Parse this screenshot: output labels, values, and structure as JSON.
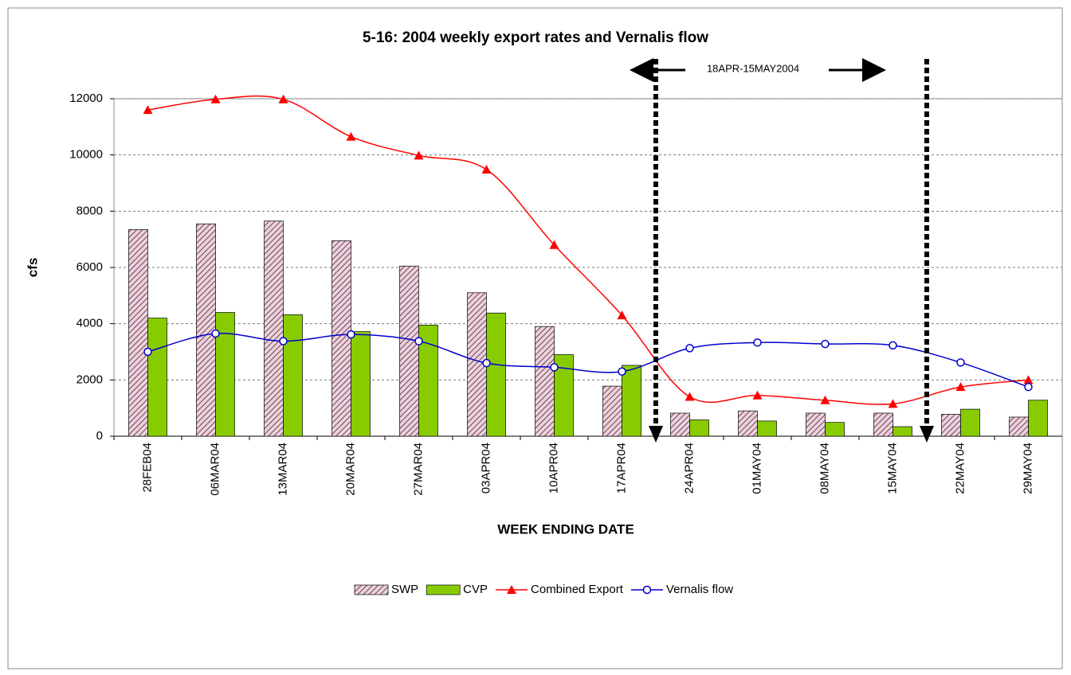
{
  "chart_data": {
    "type": "combo",
    "title": "5-16:  2004 weekly export rates and Vernalis flow",
    "xlabel": "WEEK ENDING DATE",
    "ylabel": "cfs",
    "annotation": "18APR-15MAY2004",
    "categories": [
      "28FEB04",
      "06MAR04",
      "13MAR04",
      "20MAR04",
      "27MAR04",
      "03APR04",
      "10APR04",
      "17APR04",
      "24APR04",
      "01MAY04",
      "08MAY04",
      "15MAY04",
      "22MAY04",
      "29MAY04"
    ],
    "ylim": [
      0,
      12000
    ],
    "yticks": [
      0,
      2000,
      4000,
      6000,
      8000,
      10000,
      12000
    ],
    "grid": true,
    "legend": "bottom",
    "series": [
      {
        "name": "SWP",
        "type": "bar",
        "color": "#c8a0b4",
        "values": [
          7350,
          7550,
          7650,
          6950,
          6050,
          5100,
          3900,
          1780,
          820,
          900,
          820,
          820,
          780,
          680
        ]
      },
      {
        "name": "CVP",
        "type": "bar",
        "color": "#88cc00",
        "values": [
          4200,
          4400,
          4320,
          3720,
          3950,
          4380,
          2900,
          2520,
          580,
          540,
          490,
          340,
          960,
          1280
        ]
      },
      {
        "name": "Combined Export",
        "type": "line",
        "marker": "triangle",
        "color": "#ff0000",
        "values": [
          11600,
          11980,
          11980,
          10650,
          9980,
          9480,
          6800,
          4300,
          1400,
          1450,
          1280,
          1150,
          1750,
          2000
        ]
      },
      {
        "name": "Vernalis flow",
        "type": "line",
        "marker": "circle",
        "color": "#0000cc",
        "values": [
          3000,
          3650,
          3380,
          3620,
          3380,
          2600,
          2450,
          2300,
          3130,
          3330,
          3280,
          3230,
          2620,
          1750
        ]
      }
    ]
  }
}
